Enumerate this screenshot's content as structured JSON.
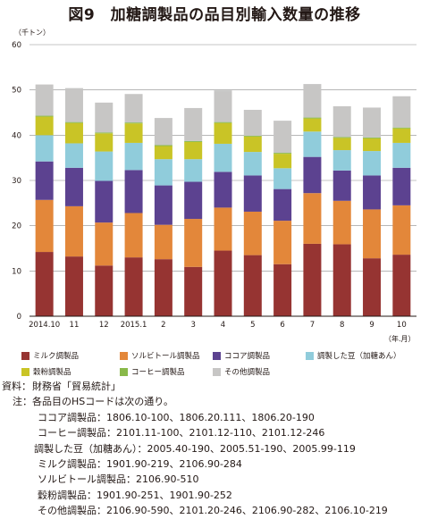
{
  "title": "図9　加糖調製品の品目別輸入数量の推移",
  "y_unit": "（千トン）",
  "x_unit": "（年.月）",
  "chart_data": {
    "type": "bar",
    "stacked": true,
    "categories": [
      "2014.10",
      "11",
      "12",
      "2015.1",
      "2",
      "3",
      "4",
      "5",
      "6",
      "7",
      "8",
      "9",
      "10"
    ],
    "ylim": [
      0,
      60
    ],
    "yticks": [
      0,
      10,
      20,
      30,
      40,
      50,
      60
    ],
    "grid": true,
    "legend_position": "bottom",
    "series": [
      {
        "name": "ミルク調製品",
        "color": "#963432",
        "values": [
          14.2,
          13.2,
          11.2,
          13.0,
          12.6,
          10.9,
          14.5,
          13.5,
          11.5,
          16.0,
          15.9,
          12.8,
          13.6
        ]
      },
      {
        "name": "ソルビトール調製品",
        "color": "#e3873a",
        "values": [
          11.5,
          11.1,
          9.5,
          9.8,
          7.6,
          10.6,
          9.5,
          9.6,
          9.6,
          11.2,
          9.6,
          10.8,
          10.9
        ]
      },
      {
        "name": "ココア調製品",
        "color": "#5c4290",
        "values": [
          8.5,
          8.5,
          9.2,
          9.5,
          8.7,
          8.2,
          7.9,
          8.0,
          7.0,
          8.0,
          6.7,
          7.5,
          8.3
        ]
      },
      {
        "name": "調製した豆（加糖あん）",
        "color": "#90ccdb",
        "values": [
          5.8,
          5.4,
          6.5,
          6.0,
          5.8,
          5.0,
          6.2,
          5.2,
          4.6,
          5.6,
          4.5,
          5.4,
          5.5
        ]
      },
      {
        "name": "穀粉調製品",
        "color": "#c9c426",
        "values": [
          4.1,
          4.5,
          4.0,
          4.3,
          2.9,
          3.8,
          4.6,
          3.4,
          3.2,
          2.9,
          2.7,
          2.8,
          3.2
        ]
      },
      {
        "name": "コーヒー調製品",
        "color": "#89b94a",
        "values": [
          0.2,
          0.2,
          0.2,
          0.2,
          0.2,
          0.2,
          0.2,
          0.2,
          0.2,
          0.2,
          0.2,
          0.2,
          0.2
        ]
      },
      {
        "name": "その他調製品",
        "color": "#c7c6c5",
        "values": [
          6.9,
          7.5,
          6.6,
          6.3,
          6.0,
          7.3,
          7.0,
          5.7,
          7.1,
          7.4,
          6.8,
          6.6,
          6.9
        ]
      }
    ]
  },
  "notes": {
    "source_label": "資料：",
    "source_text": "財務省「貿易統計」",
    "note_label": "注：",
    "intro": "各品目のHSコードは次の通り。",
    "codes": [
      "ココア調製品：1806.10-100、1806.20.111、1806.20-190",
      "コーヒー調製品：2101.11-100、2101.12-110、2101.12-246",
      "調製した豆（加糖あん）：2005.40-190、2005.51-190、2005.99-119",
      "ミルク調製品：1901.90-219、2106.90-284",
      "ソルビトール調製品：2106.90-510",
      "穀粉調製品：1901.90-251、1901.90-252",
      "その他調製品：2106.90-590、2101.20-246、2106.90-282、2106.10-219"
    ]
  }
}
